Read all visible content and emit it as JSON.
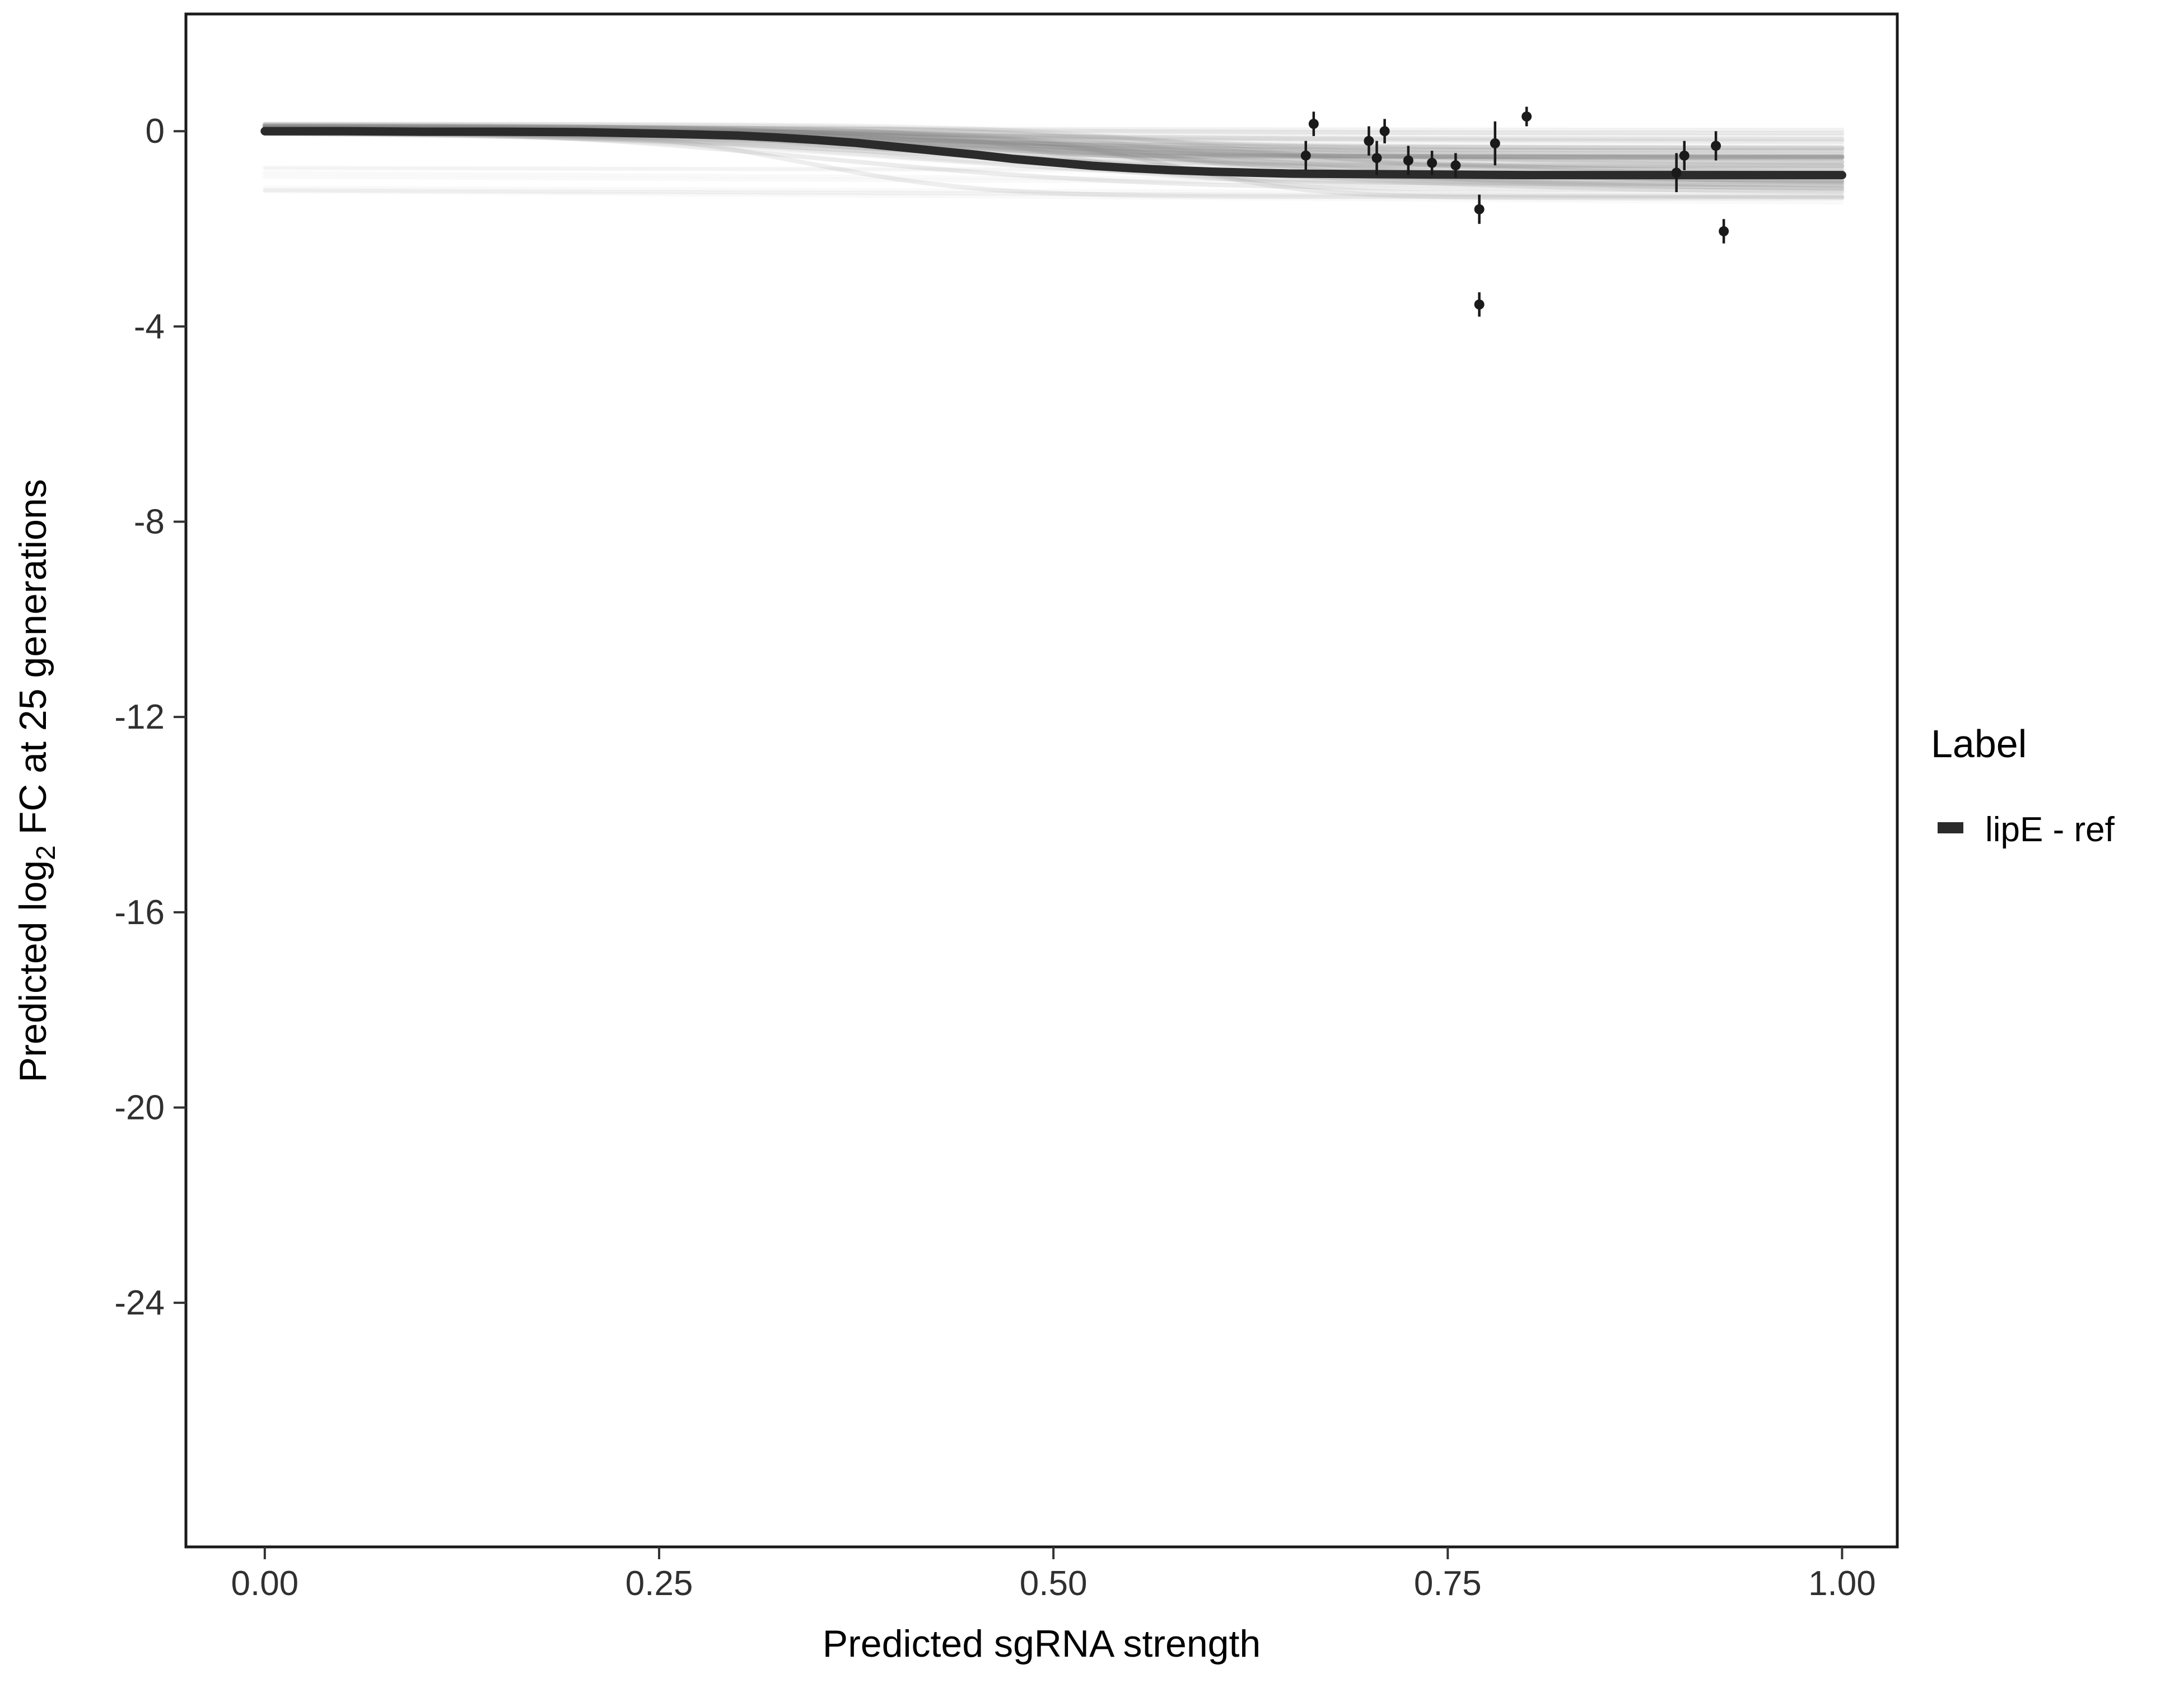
{
  "figure": {
    "xlabel": "Predicted sgRNA strength",
    "ylabel_prefix": "Predicted log",
    "ylabel_sub": "2",
    "ylabel_suffix": " FC at 25 generations",
    "legend": {
      "title": "Label",
      "entries": [
        {
          "label": "lipE - ref",
          "color": "#2b2b2b"
        }
      ]
    }
  },
  "chart_data": {
    "type": "line",
    "title": "",
    "xlabel": "Predicted sgRNA strength",
    "ylabel": "Predicted log2 FC at 25 generations",
    "xlim": [
      -0.05,
      1.035
    ],
    "ylim": [
      -29.0,
      2.4
    ],
    "grid": false,
    "legend_position": "right",
    "background": "#ffffff",
    "panel_border_color": "#1a1a1a",
    "x_ticks": [
      {
        "v": 0.0,
        "label": "0.00"
      },
      {
        "v": 0.25,
        "label": "0.25"
      },
      {
        "v": 0.5,
        "label": "0.50"
      },
      {
        "v": 0.75,
        "label": "0.75"
      },
      {
        "v": 1.0,
        "label": "1.00"
      }
    ],
    "y_ticks": [
      {
        "v": 0,
        "label": "0"
      },
      {
        "v": -4,
        "label": "-4"
      },
      {
        "v": -8,
        "label": "-8"
      },
      {
        "v": -12,
        "label": "-12"
      },
      {
        "v": -16,
        "label": "-16"
      },
      {
        "v": -20,
        "label": "-20"
      },
      {
        "v": -24,
        "label": "-24"
      }
    ],
    "series": [
      {
        "name": "lipE - ref fitted response curve",
        "type": "line",
        "color": "#2b2b2b",
        "width": 15,
        "points": [
          [
            0.0,
            0.0
          ],
          [
            0.05,
            0.0
          ],
          [
            0.1,
            -0.01
          ],
          [
            0.15,
            -0.01
          ],
          [
            0.2,
            -0.02
          ],
          [
            0.25,
            -0.05
          ],
          [
            0.275,
            -0.07
          ],
          [
            0.3,
            -0.09
          ],
          [
            0.325,
            -0.13
          ],
          [
            0.35,
            -0.18
          ],
          [
            0.375,
            -0.24
          ],
          [
            0.4,
            -0.32
          ],
          [
            0.425,
            -0.4
          ],
          [
            0.45,
            -0.48
          ],
          [
            0.475,
            -0.57
          ],
          [
            0.5,
            -0.64
          ],
          [
            0.525,
            -0.71
          ],
          [
            0.55,
            -0.76
          ],
          [
            0.575,
            -0.8
          ],
          [
            0.6,
            -0.83
          ],
          [
            0.65,
            -0.87
          ],
          [
            0.7,
            -0.88
          ],
          [
            0.75,
            -0.89
          ],
          [
            0.8,
            -0.9
          ],
          [
            0.85,
            -0.9
          ],
          [
            0.9,
            -0.9
          ],
          [
            0.95,
            -0.9
          ],
          [
            1.0,
            -0.9
          ]
        ]
      }
    ],
    "scatter": {
      "name": "observed sgRNA measurements with error bars",
      "color": "#1a1a1a",
      "point_radius": 9,
      "points": [
        {
          "x": 0.66,
          "y": -0.5,
          "err": 0.3
        },
        {
          "x": 0.665,
          "y": 0.15,
          "err": 0.25
        },
        {
          "x": 0.7,
          "y": -0.2,
          "err": 0.3
        },
        {
          "x": 0.705,
          "y": -0.55,
          "err": 0.35
        },
        {
          "x": 0.71,
          "y": 0.0,
          "err": 0.25
        },
        {
          "x": 0.725,
          "y": -0.6,
          "err": 0.3
        },
        {
          "x": 0.74,
          "y": -0.65,
          "err": 0.25
        },
        {
          "x": 0.755,
          "y": -0.7,
          "err": 0.25
        },
        {
          "x": 0.77,
          "y": -1.6,
          "err": 0.3
        },
        {
          "x": 0.77,
          "y": -3.55,
          "err": 0.25
        },
        {
          "x": 0.78,
          "y": -0.25,
          "err": 0.45
        },
        {
          "x": 0.8,
          "y": 0.3,
          "err": 0.2
        },
        {
          "x": 0.895,
          "y": -0.85,
          "err": 0.4
        },
        {
          "x": 0.9,
          "y": -0.5,
          "err": 0.3
        },
        {
          "x": 0.92,
          "y": -0.3,
          "err": 0.3
        },
        {
          "x": 0.925,
          "y": -2.05,
          "err": 0.25
        }
      ]
    },
    "ensemble": {
      "name": "posterior draw curves (uncertainty band)",
      "color": "#808080",
      "seed": 7,
      "count": 60,
      "A": [
        0.05,
        1.4
      ],
      "x0": [
        0.32,
        0.62
      ],
      "s": [
        0.045,
        0.16
      ],
      "b": [
        -0.05,
        0.15
      ],
      "opacity": [
        0.05,
        0.16
      ],
      "flat_count": 8,
      "flat_level": [
        -1.25,
        -0.7
      ],
      "flat_opacity": 0.05
    }
  }
}
